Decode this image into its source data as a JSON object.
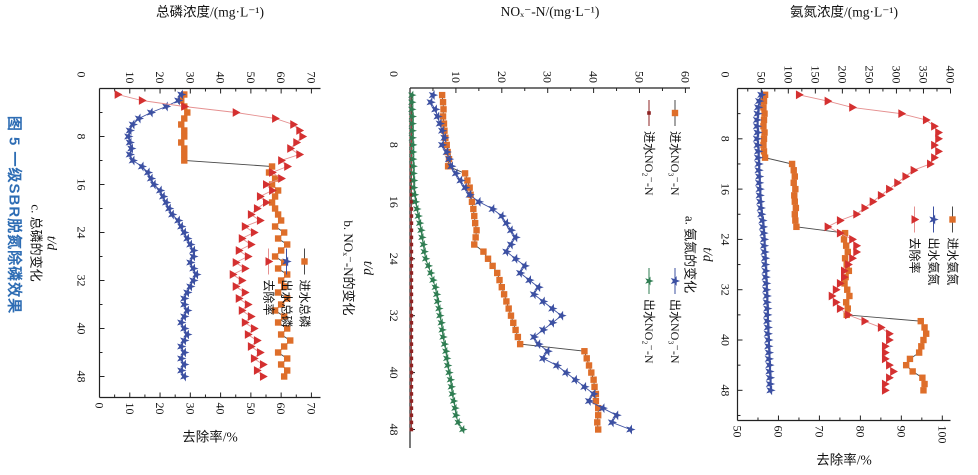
{
  "figure": {
    "caption": "图 5  一级SBR脱氮除磷效果",
    "caption_color": "#2E6DB4"
  },
  "colors": {
    "orange": "#DE6E2A",
    "blue": "#3C50A2",
    "red": "#D43030",
    "darkred": "#8E2323",
    "green": "#2F7D52",
    "axis": "#222222",
    "red_line": "#E59090",
    "dark_line": "#4A4A4A"
  },
  "days": [
    1,
    2,
    3,
    4,
    5,
    6,
    7,
    8,
    9,
    10,
    11,
    12,
    13,
    14,
    15,
    16,
    17,
    18,
    19,
    20,
    21,
    22,
    23,
    24,
    25,
    26,
    27,
    28,
    29,
    30,
    31,
    32,
    33,
    34,
    35,
    36,
    37,
    38,
    39,
    40,
    41,
    42,
    43,
    44,
    45,
    46,
    47,
    48
  ],
  "chart_data": [
    {
      "id": "a",
      "type": "line",
      "caption": "a. 氨氮的变化",
      "ylabel": "氨氮浓度/(mg·L⁻¹)",
      "xlabel": "t/d",
      "y2label": "去除率/%",
      "x_range": [
        0,
        52.8
      ],
      "x_ticks": [
        0,
        8,
        16,
        24,
        32,
        40,
        48
      ],
      "x_minor": 4,
      "y_range": [
        6,
        400
      ],
      "y_ticks": [
        50,
        100,
        150,
        200,
        250,
        300,
        350,
        400
      ],
      "y_minor": 25,
      "y2_range": [
        50,
        102
      ],
      "y2_ticks": [
        50,
        60,
        70,
        80,
        90,
        100
      ],
      "y2_minor": 5,
      "series": [
        {
          "name": "进水氨氮",
          "axis": "y",
          "marker": "square",
          "color": "#DE6E2A",
          "line": "#4A4A4A",
          "values": [
            57,
            55,
            54,
            56,
            55,
            54,
            56,
            55,
            54,
            55,
            57,
            107,
            110,
            112,
            110,
            113,
            111,
            112,
            114,
            112,
            113,
            115,
            205,
            203,
            207,
            210,
            205,
            208,
            212,
            206,
            204,
            209,
            213,
            207,
            210,
            208,
            345,
            352,
            355,
            350,
            346,
            342,
            325,
            318,
            330,
            348,
            352,
            350
          ]
        },
        {
          "name": "出水氨氮",
          "axis": "y",
          "marker": "star",
          "color": "#3C50A2",
          "line": "#3C50A2",
          "values": [
            50,
            46,
            44,
            43,
            42,
            42,
            43,
            42,
            43,
            44,
            44,
            45,
            45,
            46,
            46,
            47,
            47,
            48,
            49,
            50,
            52,
            53,
            54,
            55,
            55,
            56,
            57,
            57,
            58,
            58,
            59,
            59,
            60,
            60,
            61,
            61,
            61,
            62,
            62,
            63,
            63,
            64,
            64,
            65,
            65,
            66,
            66,
            67
          ]
        },
        {
          "name": "去除率",
          "axis": "y2",
          "marker": "triangle",
          "color": "#D43030",
          "line": "#E59090",
          "values": [
            65,
            72,
            78,
            90,
            96,
            98,
            99,
            99,
            98,
            99,
            98,
            97,
            93,
            91,
            89,
            87,
            85,
            83,
            81,
            79,
            75,
            72,
            75,
            78,
            79,
            79,
            78,
            77,
            76,
            76,
            75,
            74,
            73,
            74,
            75,
            77,
            81,
            85,
            87,
            87,
            86,
            86,
            86,
            87,
            88,
            87,
            86,
            86
          ]
        }
      ]
    },
    {
      "id": "b",
      "type": "line",
      "caption": "b. NOₓ⁻-N的变化",
      "ylabel": "NOₓ⁻-N/(mg·L⁻¹)",
      "xlabel": "t/d",
      "x_range": [
        0,
        50.6
      ],
      "x_ticks": [
        0,
        8,
        16,
        24,
        32,
        40,
        48
      ],
      "x_minor": 4,
      "y_range": [
        0,
        61
      ],
      "y_ticks": [
        10,
        20,
        30,
        40,
        50,
        60
      ],
      "y_minor": 5,
      "series": [
        {
          "name": "进水NO₃⁻-N",
          "axis": "y",
          "marker": "square",
          "color": "#DE6E2A",
          "line": "#4A4A4A",
          "values": [
            7.0,
            7.2,
            7.3,
            7.2,
            7.4,
            7.5,
            7.7,
            8.0,
            8.2,
            8.5,
            8.3,
            12.0,
            12.5,
            13.0,
            13.2,
            13.5,
            13.8,
            14.0,
            14.2,
            14.5,
            14.3,
            14.0,
            16.0,
            17.0,
            18.0,
            19.0,
            19.5,
            20.0,
            20.5,
            21.0,
            21.5,
            22.0,
            22.5,
            23.0,
            23.5,
            24.0,
            38.0,
            38.5,
            39.0,
            39.5,
            40.0,
            40.2,
            40.5,
            40.5,
            41.0,
            41.0,
            40.8,
            41.0
          ]
        },
        {
          "name": "出水NO₃⁻-N",
          "axis": "y",
          "marker": "star",
          "color": "#3C50A2",
          "line": "#3C50A2",
          "values": [
            5.0,
            4.5,
            5.5,
            6.0,
            6.5,
            7.0,
            7.5,
            7.0,
            8.0,
            8.5,
            9.0,
            10.0,
            11.0,
            12.0,
            13.0,
            15.0,
            18.0,
            20.0,
            21.0,
            22.0,
            23.0,
            22.0,
            21.0,
            23.0,
            25.0,
            24.0,
            26.0,
            28.0,
            27.0,
            29.0,
            31.0,
            33.0,
            31.0,
            29.0,
            27.0,
            28.0,
            30.0,
            29.0,
            32.0,
            34.0,
            36.0,
            38.0,
            40.0,
            39.0,
            42.0,
            45.0,
            44.0,
            48.0
          ]
        },
        {
          "name": "进水NO₂⁻-N",
          "axis": "y",
          "marker": "smallsquare",
          "color": "#8E2323",
          "line": "#8E2323",
          "values": [
            0.3,
            0.3,
            0.3,
            0.3,
            0.3,
            0.3,
            0.3,
            0.3,
            0.3,
            0.3,
            0.3,
            0.3,
            0.3,
            0.3,
            0.3,
            0.3,
            0.3,
            0.3,
            0.3,
            0.3,
            0.3,
            0.3,
            0.3,
            0.3,
            0.3,
            0.3,
            0.3,
            0.3,
            0.3,
            0.3,
            0.3,
            0.3,
            0.3,
            0.3,
            0.3,
            0.3,
            0.3,
            0.3,
            0.3,
            0.3,
            0.3,
            0.3,
            0.3,
            0.3,
            0.3,
            0.3,
            0.3,
            0.3
          ]
        },
        {
          "name": "出水NO₂⁻-N",
          "axis": "y",
          "marker": "greenstar",
          "color": "#2F7D52",
          "line": "#2F7D52",
          "values": [
            0.4,
            0.4,
            0.4,
            0.5,
            0.5,
            0.5,
            0.5,
            0.6,
            0.6,
            0.6,
            0.7,
            0.7,
            0.8,
            0.8,
            1.0,
            1.2,
            1.5,
            1.8,
            2.1,
            2.4,
            2.6,
            2.9,
            3.1,
            3.4,
            4.0,
            4.5,
            5.0,
            5.5,
            5.8,
            6.0,
            6.3,
            6.5,
            6.8,
            7.0,
            7.2,
            7.5,
            7.8,
            8.0,
            8.2,
            8.5,
            8.8,
            9.0,
            9.2,
            9.5,
            9.8,
            10.0,
            10.5,
            11.5
          ]
        }
      ]
    },
    {
      "id": "c",
      "type": "line",
      "caption": "c. 总磷的变化",
      "ylabel": "总磷浓度/(mg·L⁻¹)",
      "xlabel": "t/d",
      "y2label": "去除率/%",
      "x_range": [
        0,
        51.5
      ],
      "x_ticks": [
        0,
        8,
        16,
        24,
        32,
        40,
        48
      ],
      "x_minor": 4,
      "y_range": [
        0,
        73
      ],
      "y_ticks": [
        10,
        20,
        30,
        40,
        50,
        60,
        70
      ],
      "y_minor": 5,
      "y2_range": [
        0,
        73
      ],
      "y2_ticks": [
        0,
        10,
        20,
        30,
        40,
        50,
        60,
        70
      ],
      "y2_minor": 5,
      "series": [
        {
          "name": "进水总磷",
          "axis": "y",
          "marker": "square",
          "color": "#DE6E2A",
          "line": "#4A4A4A",
          "values": [
            28,
            27,
            28,
            29,
            28,
            27,
            28,
            28,
            27,
            28,
            28,
            28,
            57,
            56,
            58,
            57,
            59,
            58,
            57,
            58,
            59,
            60,
            58,
            61,
            59,
            62,
            60,
            58,
            61,
            59,
            62,
            60,
            61,
            59,
            62,
            60,
            58,
            61,
            59,
            62,
            60,
            63,
            61,
            59,
            62,
            60,
            62,
            61
          ]
        },
        {
          "name": "出水总磷",
          "axis": "y",
          "marker": "star",
          "color": "#3C50A2",
          "line": "#3C50A2",
          "values": [
            27,
            26,
            22,
            17,
            13,
            11,
            10,
            9.5,
            10,
            10.5,
            10,
            11,
            14,
            16,
            17,
            18,
            20,
            21,
            22,
            23,
            24,
            26,
            27,
            28,
            29,
            30,
            31,
            31,
            30,
            31,
            32,
            31,
            30,
            29,
            28,
            28,
            29,
            28,
            27,
            28,
            29,
            28,
            27,
            28,
            27,
            28,
            27,
            28
          ]
        },
        {
          "name": "去除率",
          "axis": "y2",
          "marker": "triangle",
          "color": "#D43030",
          "line": "#E59090",
          "values": [
            6,
            14,
            28,
            45,
            58,
            64,
            66,
            67,
            65,
            63,
            66,
            60,
            62,
            57,
            60,
            55,
            57,
            53,
            55,
            52,
            50,
            53,
            48,
            51,
            47,
            50,
            46,
            49,
            45,
            48,
            44,
            47,
            45,
            48,
            46,
            49,
            47,
            50,
            48,
            51,
            49,
            52,
            50,
            53,
            51,
            54,
            52,
            54
          ]
        }
      ]
    }
  ]
}
